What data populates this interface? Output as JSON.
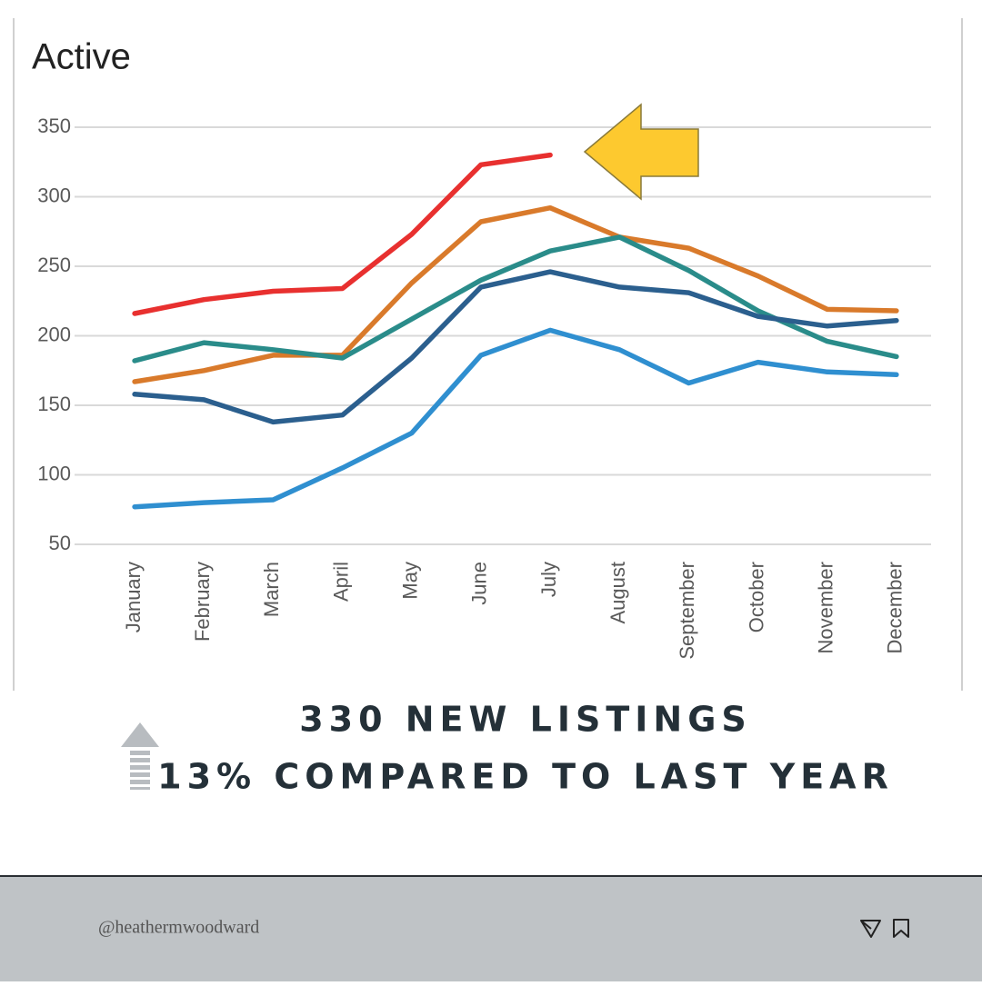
{
  "chart_data": {
    "type": "line",
    "title": "Active",
    "categories": [
      "January",
      "February",
      "March",
      "April",
      "May",
      "June",
      "July",
      "August",
      "September",
      "October",
      "November",
      "December"
    ],
    "series": [
      {
        "color": "#e8302f",
        "values": [
          216,
          226,
          232,
          234,
          273,
          323,
          330,
          null,
          null,
          null,
          null,
          null
        ]
      },
      {
        "color": "#d97a2b",
        "values": [
          167,
          175,
          186,
          186,
          238,
          282,
          292,
          271,
          263,
          243,
          219,
          218
        ]
      },
      {
        "color": "#2a8c8a",
        "values": [
          182,
          195,
          190,
          184,
          212,
          240,
          261,
          271,
          247,
          218,
          196,
          185
        ]
      },
      {
        "color": "#2b5f8e",
        "values": [
          158,
          154,
          138,
          143,
          184,
          235,
          246,
          235,
          231,
          214,
          207,
          211
        ]
      },
      {
        "color": "#2f8fd0",
        "values": [
          77,
          80,
          82,
          105,
          130,
          186,
          204,
          190,
          166,
          181,
          174,
          172
        ]
      }
    ],
    "ylim": [
      50,
      350
    ],
    "yticks": [
      50,
      100,
      150,
      200,
      250,
      300,
      350
    ],
    "grid": true
  },
  "headline": [
    "330 NEW LISTINGS",
    "13% COMPARED TO LAST YEAR"
  ],
  "footer": {
    "handle": "@heathermwoodward"
  }
}
